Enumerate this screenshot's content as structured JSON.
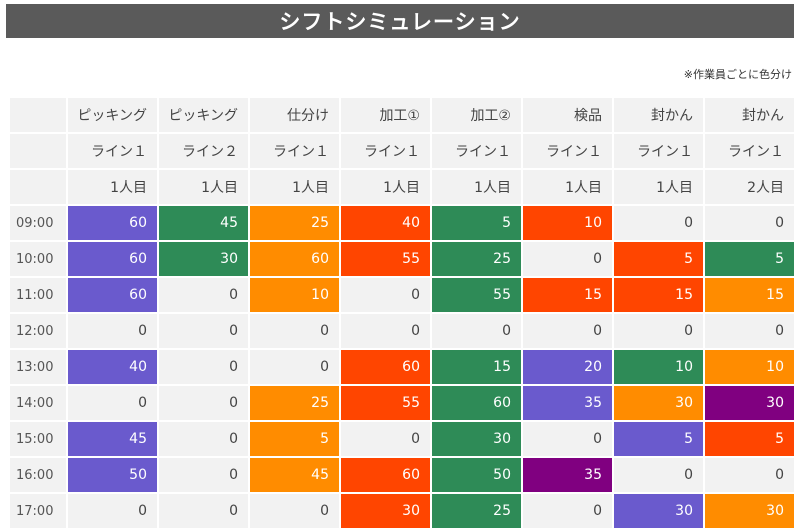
{
  "title": "シフトシミュレーション",
  "note": "※作業員ごとに色分け",
  "colors": {
    "purple": "#6a5acd",
    "green": "#2e8b57",
    "orange": "#ff8c00",
    "red": "#ff4500",
    "violet": "#800080",
    "empty": "#f2f2f2"
  },
  "columns": [
    {
      "task": "ピッキング",
      "line": "ライン１",
      "person": "1人目"
    },
    {
      "task": "ピッキング",
      "line": "ライン２",
      "person": "1人目"
    },
    {
      "task": "仕分け",
      "line": "ライン１",
      "person": "1人目"
    },
    {
      "task": "加工①",
      "line": "ライン１",
      "person": "1人目"
    },
    {
      "task": "加工②",
      "line": "ライン１",
      "person": "1人目"
    },
    {
      "task": "検品",
      "line": "ライン１",
      "person": "1人目"
    },
    {
      "task": "封かん",
      "line": "ライン１",
      "person": "1人目"
    },
    {
      "task": "封かん",
      "line": "ライン１",
      "person": "2人目"
    }
  ],
  "rows": [
    {
      "time": "09:00",
      "cells": [
        {
          "v": "60",
          "c": "purple"
        },
        {
          "v": "45",
          "c": "green"
        },
        {
          "v": "25",
          "c": "orange"
        },
        {
          "v": "40",
          "c": "red"
        },
        {
          "v": "5",
          "c": "green"
        },
        {
          "v": "10",
          "c": "red"
        },
        {
          "v": "0",
          "c": "empty"
        },
        {
          "v": "0",
          "c": "empty"
        }
      ]
    },
    {
      "time": "10:00",
      "cells": [
        {
          "v": "60",
          "c": "purple"
        },
        {
          "v": "30",
          "c": "green"
        },
        {
          "v": "60",
          "c": "orange"
        },
        {
          "v": "55",
          "c": "red"
        },
        {
          "v": "25",
          "c": "green"
        },
        {
          "v": "0",
          "c": "empty"
        },
        {
          "v": "5",
          "c": "red"
        },
        {
          "v": "5",
          "c": "green"
        }
      ]
    },
    {
      "time": "11:00",
      "cells": [
        {
          "v": "60",
          "c": "purple"
        },
        {
          "v": "0",
          "c": "empty"
        },
        {
          "v": "10",
          "c": "orange"
        },
        {
          "v": "0",
          "c": "empty"
        },
        {
          "v": "55",
          "c": "green"
        },
        {
          "v": "15",
          "c": "red"
        },
        {
          "v": "15",
          "c": "red"
        },
        {
          "v": "15",
          "c": "orange"
        }
      ]
    },
    {
      "time": "12:00",
      "cells": [
        {
          "v": "0",
          "c": "empty"
        },
        {
          "v": "0",
          "c": "empty"
        },
        {
          "v": "0",
          "c": "empty"
        },
        {
          "v": "0",
          "c": "empty"
        },
        {
          "v": "0",
          "c": "empty"
        },
        {
          "v": "0",
          "c": "empty"
        },
        {
          "v": "0",
          "c": "empty"
        },
        {
          "v": "0",
          "c": "empty"
        }
      ]
    },
    {
      "time": "13:00",
      "cells": [
        {
          "v": "40",
          "c": "purple"
        },
        {
          "v": "0",
          "c": "empty"
        },
        {
          "v": "0",
          "c": "empty"
        },
        {
          "v": "60",
          "c": "red"
        },
        {
          "v": "15",
          "c": "green"
        },
        {
          "v": "20",
          "c": "purple"
        },
        {
          "v": "10",
          "c": "green"
        },
        {
          "v": "10",
          "c": "orange"
        }
      ]
    },
    {
      "time": "14:00",
      "cells": [
        {
          "v": "0",
          "c": "empty"
        },
        {
          "v": "0",
          "c": "empty"
        },
        {
          "v": "25",
          "c": "orange"
        },
        {
          "v": "55",
          "c": "red"
        },
        {
          "v": "60",
          "c": "green"
        },
        {
          "v": "35",
          "c": "purple"
        },
        {
          "v": "30",
          "c": "orange"
        },
        {
          "v": "30",
          "c": "violet"
        }
      ]
    },
    {
      "time": "15:00",
      "cells": [
        {
          "v": "45",
          "c": "purple"
        },
        {
          "v": "0",
          "c": "empty"
        },
        {
          "v": "5",
          "c": "orange"
        },
        {
          "v": "0",
          "c": "empty"
        },
        {
          "v": "30",
          "c": "green"
        },
        {
          "v": "0",
          "c": "empty"
        },
        {
          "v": "5",
          "c": "purple"
        },
        {
          "v": "5",
          "c": "red"
        }
      ]
    },
    {
      "time": "16:00",
      "cells": [
        {
          "v": "50",
          "c": "purple"
        },
        {
          "v": "0",
          "c": "empty"
        },
        {
          "v": "45",
          "c": "orange"
        },
        {
          "v": "60",
          "c": "red"
        },
        {
          "v": "50",
          "c": "green"
        },
        {
          "v": "35",
          "c": "violet"
        },
        {
          "v": "0",
          "c": "empty"
        },
        {
          "v": "0",
          "c": "empty"
        }
      ]
    },
    {
      "time": "17:00",
      "cells": [
        {
          "v": "0",
          "c": "empty"
        },
        {
          "v": "0",
          "c": "empty"
        },
        {
          "v": "0",
          "c": "empty"
        },
        {
          "v": "30",
          "c": "red"
        },
        {
          "v": "25",
          "c": "green"
        },
        {
          "v": "0",
          "c": "empty"
        },
        {
          "v": "30",
          "c": "purple"
        },
        {
          "v": "30",
          "c": "orange"
        }
      ]
    }
  ]
}
